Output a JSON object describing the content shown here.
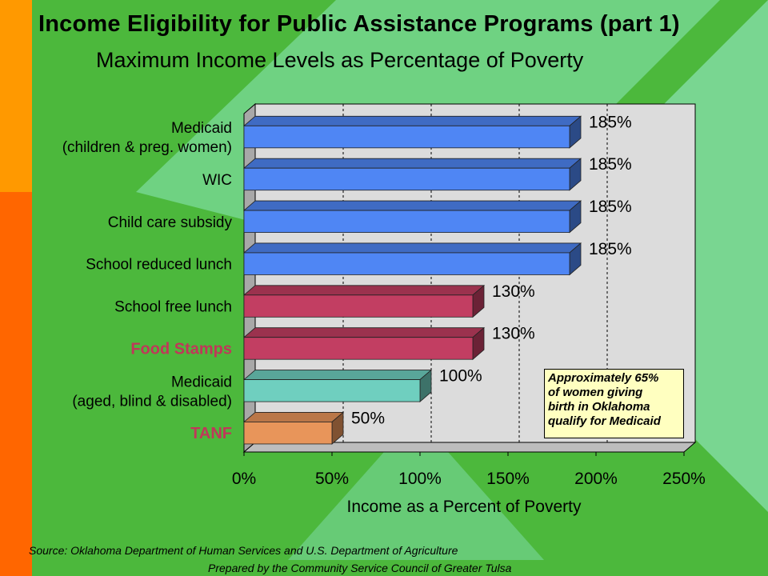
{
  "title": "Income Eligibility for Public Assistance Programs (part 1)",
  "subtitle": "Maximum Income Levels as Percentage of Poverty",
  "annotation": [
    "Approximately 65%",
    "of women giving",
    "birth in Oklahoma",
    "qualify for Medicaid"
  ],
  "source": "Source:  Oklahoma Department of Human Services and U.S. Department of Agriculture",
  "prepared_by": "Prepared by the Community Service Council of Greater Tulsa",
  "colors": {
    "background": "#4cb83c",
    "blue": "#4f86f4",
    "red": "#c23e62",
    "teal": "#6fcfbf",
    "orange": "#e8955a",
    "plot_bg": "#dcdcdc",
    "highlight_label": "#c0375a"
  },
  "chart_data": {
    "type": "bar",
    "orientation": "horizontal",
    "xlabel": "Income as a Percent of Poverty",
    "xlim": [
      0,
      250
    ],
    "xticks": [
      "0%",
      "50%",
      "100%",
      "150%",
      "200%",
      "250%"
    ],
    "grid": "vertical dashed",
    "categories": [
      [
        "Medicaid",
        "(children & preg. women)"
      ],
      [
        "WIC"
      ],
      [
        "Child care subsidy"
      ],
      [
        "School reduced lunch"
      ],
      [
        "School free lunch"
      ],
      [
        "Food Stamps"
      ],
      [
        "Medicaid",
        "(aged, blind & disabled)"
      ],
      [
        "TANF"
      ]
    ],
    "values": [
      185,
      185,
      185,
      185,
      130,
      130,
      100,
      50
    ],
    "value_labels": [
      "185%",
      "185%",
      "185%",
      "185%",
      "130%",
      "130%",
      "100%",
      "50%"
    ],
    "bar_colors": [
      "blue",
      "blue",
      "blue",
      "blue",
      "red",
      "red",
      "teal",
      "orange"
    ],
    "highlight": [
      false,
      false,
      false,
      false,
      false,
      true,
      false,
      true
    ]
  }
}
